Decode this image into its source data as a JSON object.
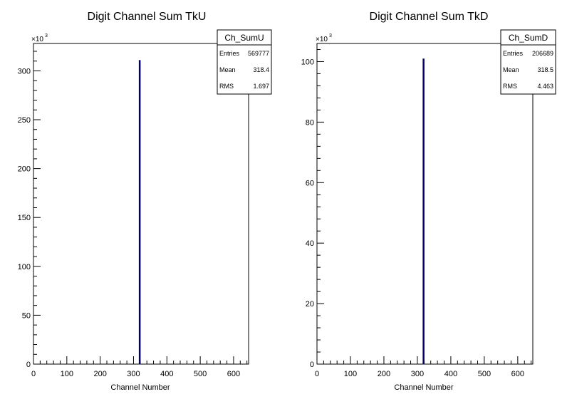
{
  "chart_data": [
    {
      "type": "bar",
      "title": "Digit Channel Sum TkU",
      "xlabel": "Channel Number",
      "ylabel": "",
      "xlim": [
        0,
        645
      ],
      "ylim": [
        0,
        328
      ],
      "x_ticks": [
        0,
        100,
        200,
        300,
        400,
        500,
        600
      ],
      "y_ticks": [
        0,
        50,
        100,
        150,
        200,
        250,
        300
      ],
      "y_multiplier": "×10",
      "y_multiplier_exp": "3",
      "bars": [
        {
          "x": 318,
          "value": 311
        }
      ],
      "line_color": "#000066",
      "stats": {
        "name": "Ch_SumU",
        "rows": [
          {
            "label": "Entries",
            "value": "569777"
          },
          {
            "label": "Mean",
            "value": "318.4"
          },
          {
            "label": "RMS",
            "value": "1.697"
          }
        ]
      }
    },
    {
      "type": "bar",
      "title": "Digit Channel Sum TkD",
      "xlabel": "Channel Number",
      "ylabel": "",
      "xlim": [
        0,
        645
      ],
      "ylim": [
        0,
        106
      ],
      "x_ticks": [
        0,
        100,
        200,
        300,
        400,
        500,
        600
      ],
      "y_ticks": [
        0,
        20,
        40,
        60,
        80,
        100
      ],
      "y_multiplier": "×10",
      "y_multiplier_exp": "3",
      "bars": [
        {
          "x": 318,
          "value": 101
        }
      ],
      "line_color": "#000066",
      "stats": {
        "name": "Ch_SumD",
        "rows": [
          {
            "label": "Entries",
            "value": "206689"
          },
          {
            "label": "Mean",
            "value": "318.5"
          },
          {
            "label": "RMS",
            "value": "4.463"
          }
        ]
      }
    }
  ]
}
